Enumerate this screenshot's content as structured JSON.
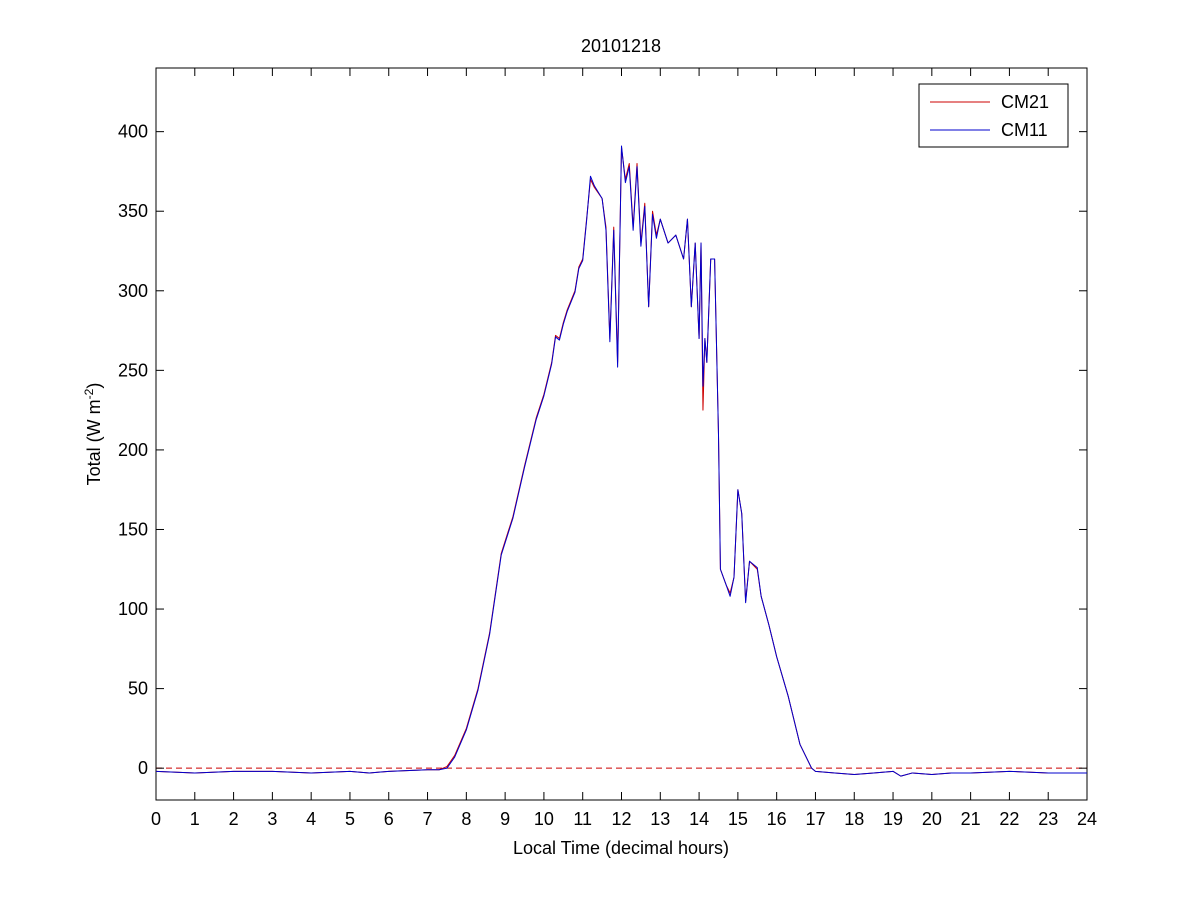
{
  "chart_data": {
    "type": "line",
    "title": "20101218",
    "xlabel": "Local Time (decimal hours)",
    "ylabel_main": "Total (W m",
    "ylabel_sup": "-2",
    "ylabel_end": ")",
    "xlim": [
      0,
      24
    ],
    "ylim": [
      -20,
      440
    ],
    "xticks": [
      "0",
      "1",
      "2",
      "3",
      "4",
      "5",
      "6",
      "7",
      "8",
      "9",
      "10",
      "11",
      "12",
      "13",
      "14",
      "15",
      "16",
      "17",
      "18",
      "19",
      "20",
      "21",
      "22",
      "23",
      "24"
    ],
    "yticks": [
      "0",
      "50",
      "100",
      "150",
      "200",
      "250",
      "300",
      "350",
      "400"
    ],
    "grid": false,
    "legend_position": "top-right",
    "reference_line": {
      "y": 0,
      "style": "dashed",
      "color": "#cc0000"
    },
    "series": [
      {
        "name": "CM21",
        "color": "#cc0000",
        "points": [
          [
            0,
            -2
          ],
          [
            1,
            -3
          ],
          [
            2,
            -2
          ],
          [
            3,
            -2
          ],
          [
            4,
            -3
          ],
          [
            5,
            -2
          ],
          [
            5.5,
            -3
          ],
          [
            6,
            -2
          ],
          [
            7,
            -1
          ],
          [
            7.3,
            -1
          ],
          [
            7.5,
            1
          ],
          [
            7.7,
            8
          ],
          [
            8,
            25
          ],
          [
            8.3,
            50
          ],
          [
            8.6,
            85
          ],
          [
            8.9,
            135
          ],
          [
            9.2,
            158
          ],
          [
            9.5,
            190
          ],
          [
            9.8,
            220
          ],
          [
            10,
            235
          ],
          [
            10.2,
            255
          ],
          [
            10.3,
            272
          ],
          [
            10.4,
            270
          ],
          [
            10.5,
            280
          ],
          [
            10.6,
            288
          ],
          [
            10.8,
            300
          ],
          [
            10.9,
            315
          ],
          [
            11,
            320
          ],
          [
            11.1,
            345
          ],
          [
            11.2,
            370
          ],
          [
            11.3,
            365
          ],
          [
            11.5,
            358
          ],
          [
            11.6,
            340
          ],
          [
            11.7,
            270
          ],
          [
            11.8,
            340
          ],
          [
            11.9,
            255
          ],
          [
            12,
            390
          ],
          [
            12.1,
            370
          ],
          [
            12.2,
            380
          ],
          [
            12.3,
            340
          ],
          [
            12.4,
            380
          ],
          [
            12.5,
            330
          ],
          [
            12.6,
            355
          ],
          [
            12.7,
            290
          ],
          [
            12.8,
            350
          ],
          [
            12.9,
            335
          ],
          [
            13,
            345
          ],
          [
            13.2,
            330
          ],
          [
            13.4,
            335
          ],
          [
            13.6,
            320
          ],
          [
            13.7,
            345
          ],
          [
            13.8,
            290
          ],
          [
            13.9,
            330
          ],
          [
            14,
            270
          ],
          [
            14.05,
            330
          ],
          [
            14.1,
            225
          ],
          [
            14.15,
            270
          ],
          [
            14.2,
            255
          ],
          [
            14.3,
            320
          ],
          [
            14.4,
            320
          ],
          [
            14.5,
            210
          ],
          [
            14.55,
            125
          ],
          [
            14.7,
            115
          ],
          [
            14.8,
            110
          ],
          [
            14.9,
            120
          ],
          [
            15,
            175
          ],
          [
            15.1,
            160
          ],
          [
            15.2,
            105
          ],
          [
            15.3,
            130
          ],
          [
            15.5,
            125
          ],
          [
            15.6,
            108
          ],
          [
            15.8,
            90
          ],
          [
            16,
            70
          ],
          [
            16.3,
            45
          ],
          [
            16.6,
            15
          ],
          [
            16.9,
            0
          ],
          [
            17,
            -2
          ],
          [
            17.5,
            -3
          ],
          [
            18,
            -4
          ],
          [
            18.5,
            -3
          ],
          [
            19,
            -2
          ],
          [
            19.2,
            -5
          ],
          [
            19.5,
            -3
          ],
          [
            20,
            -4
          ],
          [
            20.5,
            -3
          ],
          [
            21,
            -3
          ],
          [
            22,
            -2
          ],
          [
            23,
            -3
          ],
          [
            24,
            -3
          ]
        ]
      },
      {
        "name": "CM11",
        "color": "#0000cc",
        "points": [
          [
            0,
            -2
          ],
          [
            1,
            -3
          ],
          [
            2,
            -2
          ],
          [
            3,
            -2
          ],
          [
            4,
            -3
          ],
          [
            5,
            -2
          ],
          [
            5.5,
            -3
          ],
          [
            6,
            -2
          ],
          [
            7,
            -1
          ],
          [
            7.3,
            -1
          ],
          [
            7.5,
            0
          ],
          [
            7.7,
            7
          ],
          [
            8,
            24
          ],
          [
            8.3,
            49
          ],
          [
            8.6,
            84
          ],
          [
            8.9,
            134
          ],
          [
            9.2,
            157
          ],
          [
            9.5,
            189
          ],
          [
            9.8,
            219
          ],
          [
            10,
            234
          ],
          [
            10.2,
            254
          ],
          [
            10.3,
            271
          ],
          [
            10.4,
            269
          ],
          [
            10.5,
            279
          ],
          [
            10.6,
            287
          ],
          [
            10.8,
            299
          ],
          [
            10.9,
            314
          ],
          [
            11,
            319
          ],
          [
            11.1,
            344
          ],
          [
            11.2,
            372
          ],
          [
            11.3,
            366
          ],
          [
            11.5,
            358
          ],
          [
            11.6,
            338
          ],
          [
            11.7,
            268
          ],
          [
            11.8,
            338
          ],
          [
            11.9,
            252
          ],
          [
            12,
            391
          ],
          [
            12.1,
            368
          ],
          [
            12.2,
            378
          ],
          [
            12.3,
            338
          ],
          [
            12.4,
            378
          ],
          [
            12.5,
            328
          ],
          [
            12.6,
            353
          ],
          [
            12.7,
            290
          ],
          [
            12.8,
            348
          ],
          [
            12.9,
            333
          ],
          [
            13,
            345
          ],
          [
            13.2,
            330
          ],
          [
            13.4,
            335
          ],
          [
            13.6,
            320
          ],
          [
            13.7,
            345
          ],
          [
            13.8,
            290
          ],
          [
            13.9,
            330
          ],
          [
            14,
            270
          ],
          [
            14.05,
            330
          ],
          [
            14.1,
            240
          ],
          [
            14.15,
            270
          ],
          [
            14.2,
            255
          ],
          [
            14.3,
            320
          ],
          [
            14.4,
            320
          ],
          [
            14.5,
            210
          ],
          [
            14.55,
            125
          ],
          [
            14.7,
            115
          ],
          [
            14.8,
            108
          ],
          [
            14.9,
            120
          ],
          [
            15,
            175
          ],
          [
            15.1,
            160
          ],
          [
            15.2,
            104
          ],
          [
            15.3,
            130
          ],
          [
            15.5,
            126
          ],
          [
            15.6,
            108
          ],
          [
            15.8,
            90
          ],
          [
            16,
            70
          ],
          [
            16.3,
            45
          ],
          [
            16.6,
            15
          ],
          [
            16.9,
            0
          ],
          [
            17,
            -2
          ],
          [
            17.5,
            -3
          ],
          [
            18,
            -4
          ],
          [
            18.5,
            -3
          ],
          [
            19,
            -2
          ],
          [
            19.2,
            -5
          ],
          [
            19.5,
            -3
          ],
          [
            20,
            -4
          ],
          [
            20.5,
            -3
          ],
          [
            21,
            -3
          ],
          [
            22,
            -2
          ],
          [
            23,
            -3
          ],
          [
            24,
            -3
          ]
        ]
      }
    ]
  }
}
